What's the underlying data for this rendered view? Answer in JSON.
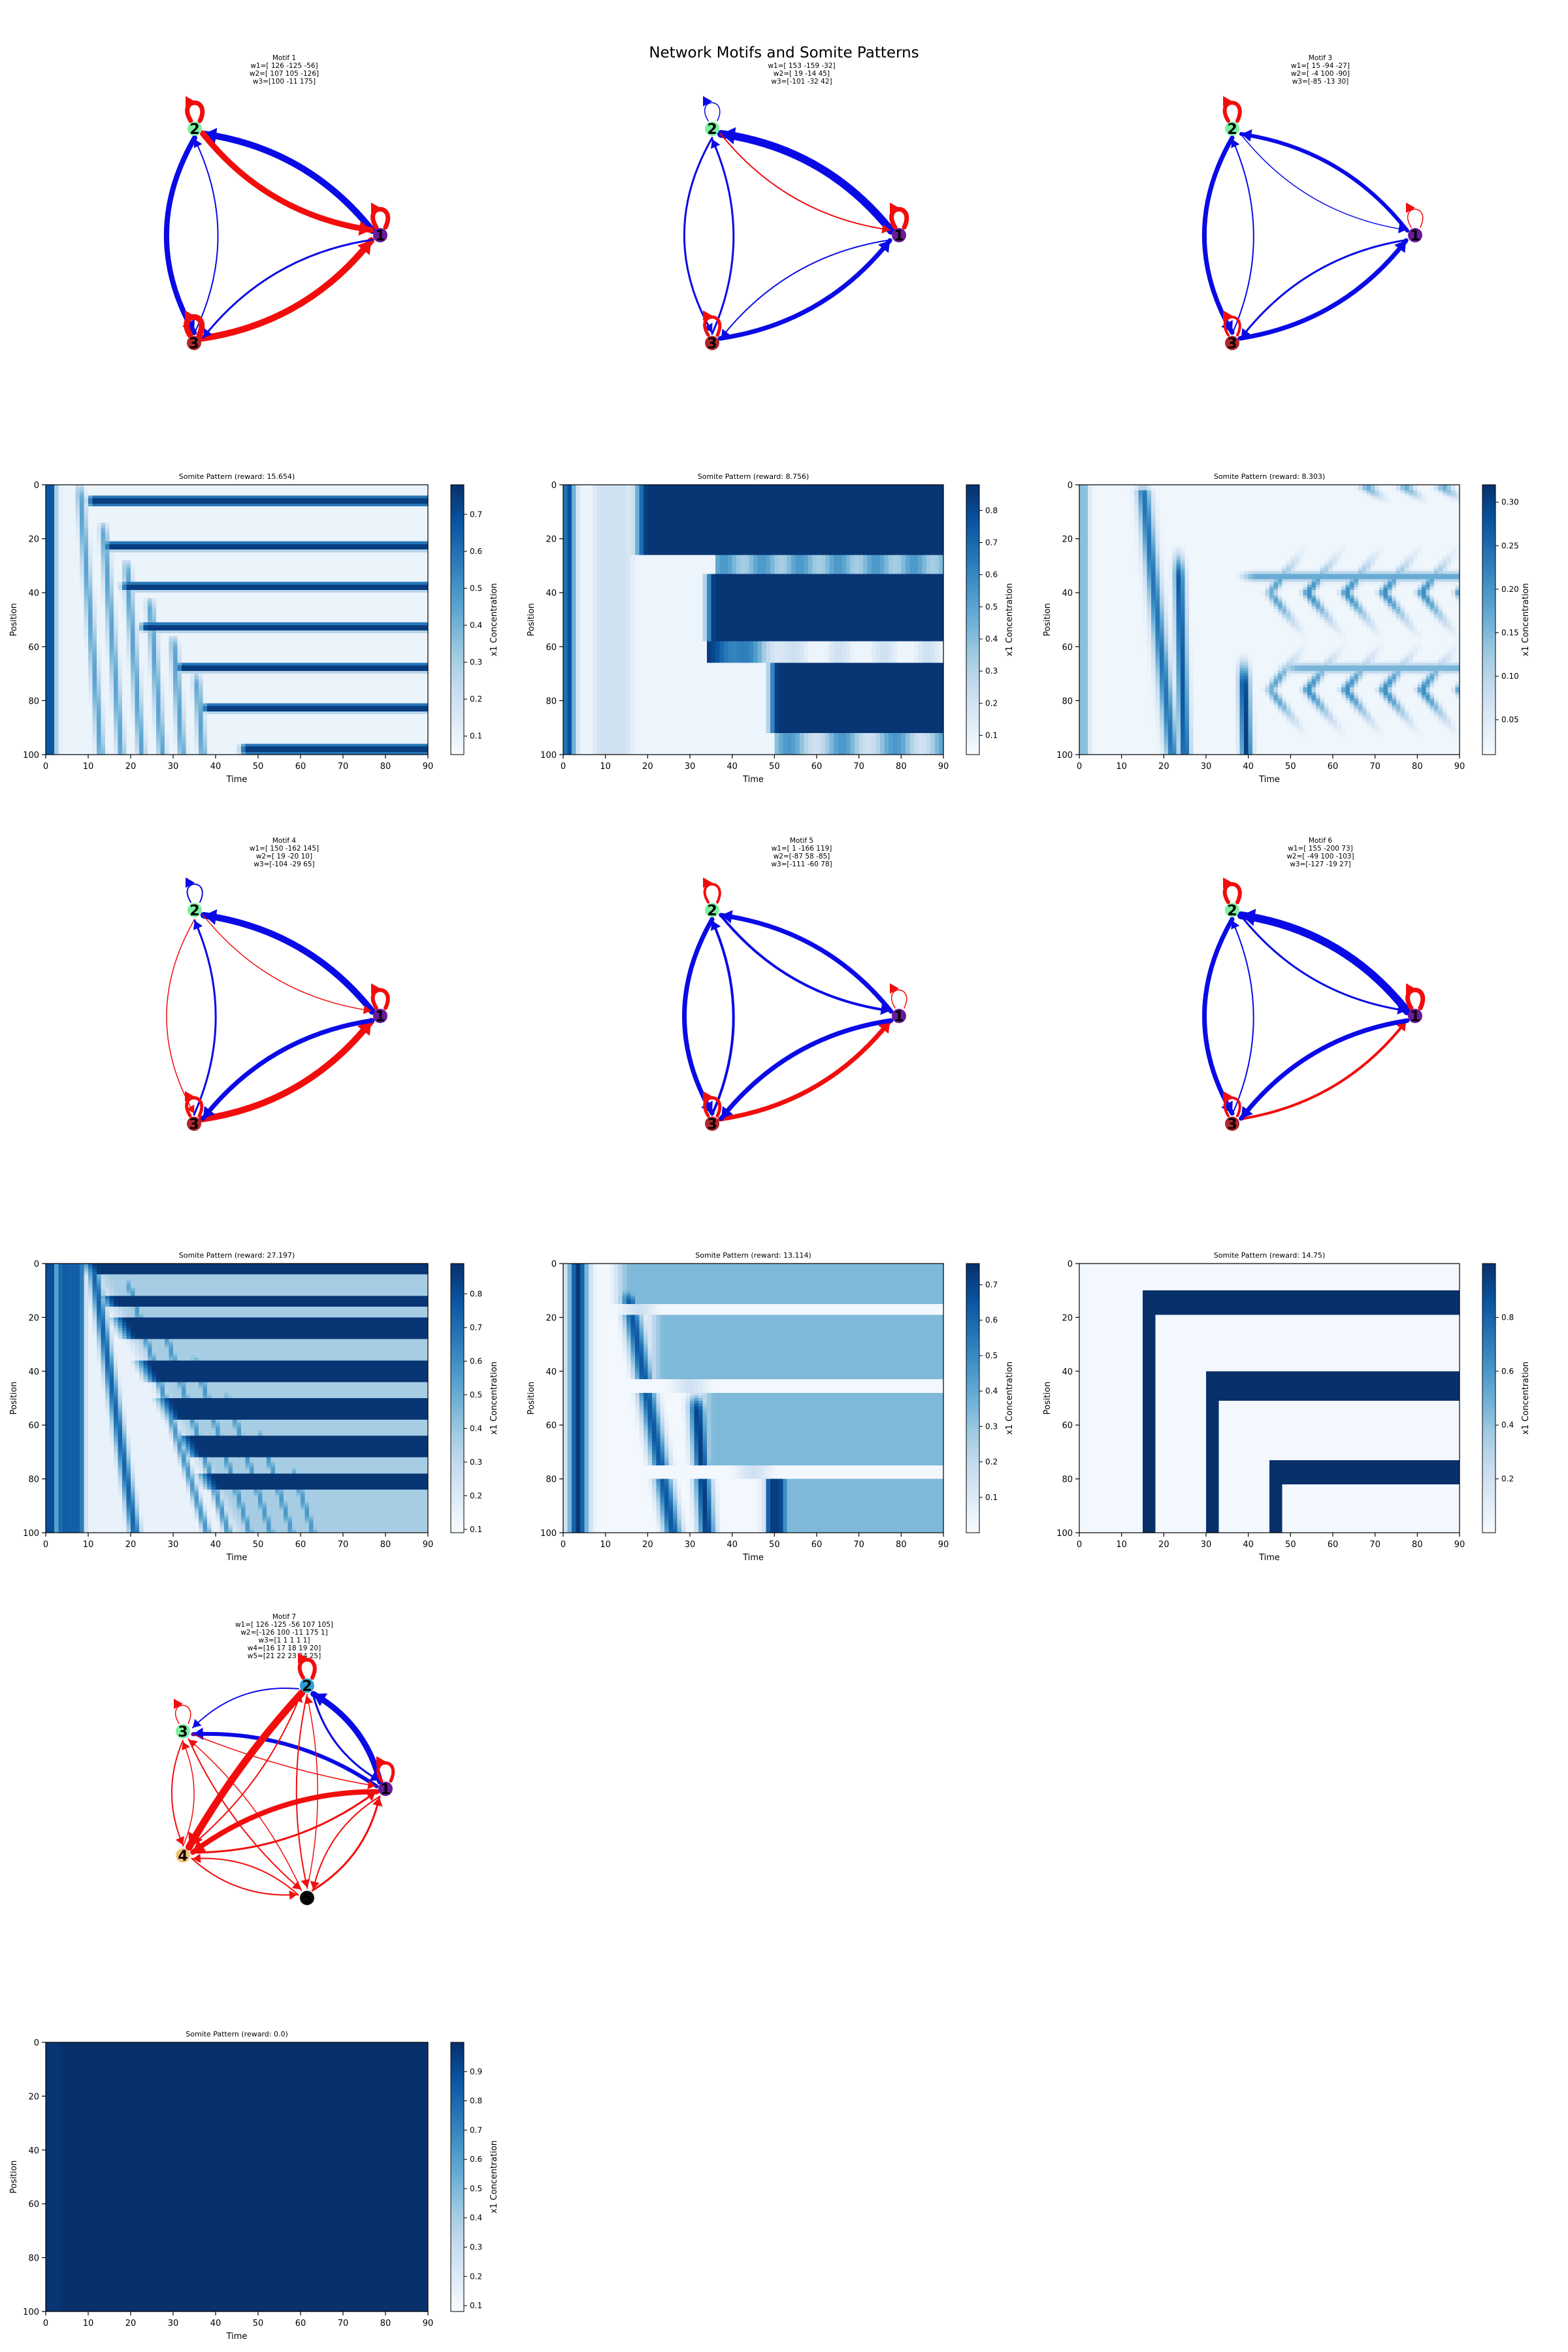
{
  "figure": {
    "title": "Network Motifs and Somite Patterns"
  },
  "colors": {
    "activation": "#0a0ae6",
    "repression": "#f20d0d",
    "heatmap_low": "#f7fbff",
    "heatmap_high": "#08306b",
    "node1": "#6a1b9a",
    "node2": "#7cf0a0",
    "node3": "#b0282b",
    "node4": "#f4c27a",
    "node5": "#0a0a0a"
  },
  "motifs": [
    {
      "title_lines": [
        "Motif 1",
        "w1=[ 126 -125  -56]",
        "w2=[ 107  105 -126]",
        "w3=[100 -11 175]"
      ],
      "nodes": [
        "1",
        "2",
        "3"
      ]
    },
    {
      "title_lines": [
        "",
        "w1=[ 153 -159  -32]",
        "w2=[  19  -14  45]",
        "w3=[-101  -32   42]"
      ],
      "nodes": [
        "1",
        "2",
        "3"
      ]
    },
    {
      "title_lines": [
        "Motif 3",
        "w1=[ 15 -94 -27]",
        "w2=[ -4 100 -90]",
        "w3=[-85 -13  30]"
      ],
      "nodes": [
        "1",
        "2",
        "3"
      ]
    },
    {
      "title_lines": [
        "Motif 4",
        "w1=[ 150 -162  145]",
        "w2=[ 19 -20  10]",
        "w3=[-104  -29   65]"
      ],
      "nodes": [
        "1",
        "2",
        "3"
      ]
    },
    {
      "title_lines": [
        "Motif 5",
        "w1=[   1 -166  119]",
        "w2=[-87  58 -85]",
        "w3=[-111  -60   78]"
      ],
      "nodes": [
        "1",
        "2",
        "3"
      ]
    },
    {
      "title_lines": [
        "Motif 6",
        "w1=[ 155 -200   73]",
        "w2=[ -49  100 -103]",
        "w3=[-127  -19   27]"
      ],
      "nodes": [
        "1",
        "2",
        "3"
      ]
    },
    {
      "title_lines": [
        "Motif 7",
        "w1=[ 126 -125  -56  107  105]",
        "w2=[-126  100  -11  175    1]",
        "w3=[1 1 1 1 1]",
        "w4=[16 17 18 19 20]",
        "w5=[21 22 23 24 25]"
      ],
      "nodes": [
        "1",
        "2",
        "3",
        "4",
        "5"
      ]
    }
  ],
  "chart_data": [
    {
      "type": "heatmap",
      "title": "Somite Pattern (reward: 15.654)",
      "xlabel": "Time",
      "ylabel": "Position",
      "colorbar_label": "x1 Concentration",
      "xlim": [
        0,
        90
      ],
      "ylim": [
        100,
        0
      ],
      "xticks": [
        0,
        10,
        20,
        30,
        40,
        50,
        60,
        70,
        80,
        90
      ],
      "yticks": [
        0,
        20,
        40,
        60,
        80,
        100
      ],
      "colorbar_range": [
        0.05,
        0.78
      ],
      "colorbar_ticks": [
        0.1,
        0.2,
        0.3,
        0.4,
        0.5,
        0.6,
        0.7
      ],
      "pattern": "many-stripes"
    },
    {
      "type": "heatmap",
      "title": "Somite Pattern (reward: 8.756)",
      "xlabel": "Time",
      "ylabel": "Position",
      "colorbar_label": "x1 Concentration",
      "xlim": [
        0,
        90
      ],
      "ylim": [
        100,
        0
      ],
      "xticks": [
        0,
        10,
        20,
        30,
        40,
        50,
        60,
        70,
        80,
        90
      ],
      "yticks": [
        0,
        20,
        40,
        60,
        80,
        100
      ],
      "colorbar_range": [
        0.04,
        0.88
      ],
      "colorbar_ticks": [
        0.1,
        0.2,
        0.3,
        0.4,
        0.5,
        0.6,
        0.7,
        0.8
      ],
      "pattern": "thick-blocks"
    },
    {
      "type": "heatmap",
      "title": "Somite Pattern (reward: 8.303)",
      "xlabel": "Time",
      "ylabel": "Position",
      "colorbar_label": "x1 Concentration",
      "xlim": [
        0,
        90
      ],
      "ylim": [
        100,
        0
      ],
      "xticks": [
        0,
        10,
        20,
        30,
        40,
        50,
        60,
        70,
        80,
        90
      ],
      "yticks": [
        0,
        20,
        40,
        60,
        80,
        100
      ],
      "colorbar_range": [
        0.01,
        0.32
      ],
      "colorbar_ticks": [
        0.05,
        0.1,
        0.15,
        0.2,
        0.25,
        0.3
      ],
      "colorbar_tick_labels": [
        "0.05",
        "0.10",
        "0.15",
        "0.20",
        "0.25",
        "0.30"
      ],
      "pattern": "chevrons"
    },
    {
      "type": "heatmap",
      "title": "Somite Pattern (reward: 27.197)",
      "xlabel": "Time",
      "ylabel": "Position",
      "colorbar_label": "x1 Concentration",
      "xlim": [
        0,
        90
      ],
      "ylim": [
        100,
        0
      ],
      "xticks": [
        0,
        10,
        20,
        30,
        40,
        50,
        60,
        70,
        80,
        90
      ],
      "yticks": [
        0,
        20,
        40,
        60,
        80,
        100
      ],
      "colorbar_range": [
        0.09,
        0.89
      ],
      "colorbar_ticks": [
        0.1,
        0.2,
        0.3,
        0.4,
        0.5,
        0.6,
        0.7,
        0.8
      ],
      "pattern": "alternating-stripes"
    },
    {
      "type": "heatmap",
      "title": "Somite Pattern (reward: 13.114)",
      "xlabel": "Time",
      "ylabel": "Position",
      "colorbar_label": "x1 Concentration",
      "xlim": [
        0,
        90
      ],
      "ylim": [
        100,
        0
      ],
      "xticks": [
        0,
        10,
        20,
        30,
        40,
        50,
        60,
        70,
        80,
        90
      ],
      "yticks": [
        0,
        20,
        40,
        60,
        80,
        100
      ],
      "colorbar_range": [
        0.0,
        0.76
      ],
      "colorbar_ticks": [
        0.1,
        0.2,
        0.3,
        0.4,
        0.5,
        0.6,
        0.7
      ],
      "pattern": "light-blocks"
    },
    {
      "type": "heatmap",
      "title": "Somite Pattern (reward: 14.75)",
      "xlabel": "Time",
      "ylabel": "Position",
      "colorbar_label": "x1 Concentration",
      "xlim": [
        0,
        90
      ],
      "ylim": [
        100,
        0
      ],
      "xticks": [
        0,
        10,
        20,
        30,
        40,
        50,
        60,
        70,
        80,
        90
      ],
      "yticks": [
        0,
        20,
        40,
        60,
        80,
        100
      ],
      "colorbar_range": [
        0.0,
        1.0
      ],
      "colorbar_ticks": [
        0.2,
        0.4,
        0.6,
        0.8
      ],
      "pattern": "three-bands"
    },
    {
      "type": "heatmap",
      "title": "Somite Pattern (reward: 0.0)",
      "xlabel": "Time",
      "ylabel": "Position",
      "colorbar_label": "x1 Concentration",
      "xlim": [
        0,
        90
      ],
      "ylim": [
        100,
        0
      ],
      "xticks": [
        0,
        10,
        20,
        30,
        40,
        50,
        60,
        70,
        80,
        90
      ],
      "yticks": [
        0,
        20,
        40,
        60,
        80,
        100
      ],
      "colorbar_range": [
        0.08,
        1.0
      ],
      "colorbar_ticks": [
        0.1,
        0.2,
        0.3,
        0.4,
        0.5,
        0.6,
        0.7,
        0.8,
        0.9
      ],
      "pattern": "saturated"
    }
  ]
}
